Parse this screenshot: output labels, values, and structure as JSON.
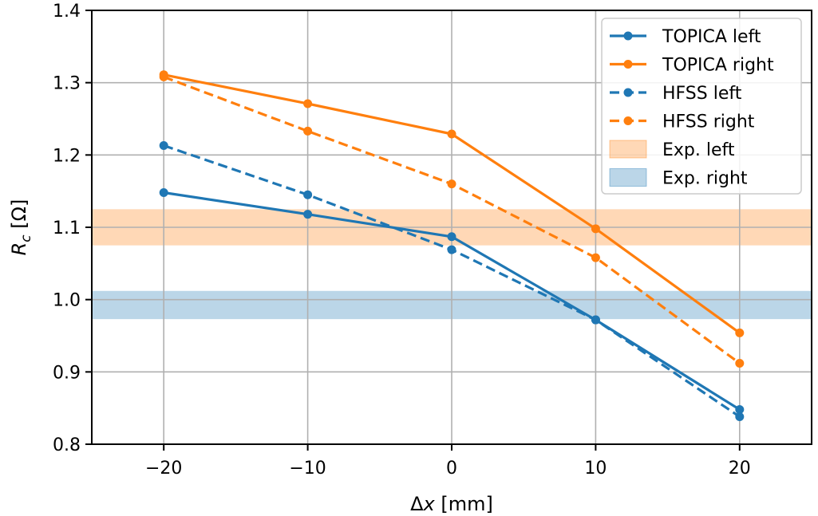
{
  "chart_data": {
    "type": "line",
    "xlabel": "Δx [mm]",
    "ylabel": "R_c [Ω]",
    "xlim": [
      -25,
      25
    ],
    "ylim": [
      0.8,
      1.4
    ],
    "xticks": [
      -20,
      -10,
      0,
      10,
      20
    ],
    "xtick_labels": [
      "−20",
      "−10",
      "0",
      "10",
      "20"
    ],
    "yticks": [
      0.8,
      0.9,
      1.0,
      1.1,
      1.2,
      1.3,
      1.4
    ],
    "ytick_labels": [
      "0.8",
      "0.9",
      "1.0",
      "1.1",
      "1.2",
      "1.3",
      "1.4"
    ],
    "grid": true,
    "legend_position": "top-right",
    "x": [
      -20,
      -10,
      0,
      10,
      20
    ],
    "series": [
      {
        "name": "TOPICA left",
        "style": "solid",
        "color": "#1f77b4",
        "values": [
          1.148,
          1.118,
          1.087,
          0.972,
          0.848
        ]
      },
      {
        "name": "TOPICA right",
        "style": "solid",
        "color": "#ff7f0e",
        "values": [
          1.311,
          1.271,
          1.229,
          1.098,
          0.954
        ]
      },
      {
        "name": "HFSS left",
        "style": "dashed",
        "color": "#1f77b4",
        "values": [
          1.213,
          1.145,
          1.069,
          0.972,
          0.838
        ]
      },
      {
        "name": "HFSS right",
        "style": "dashed",
        "color": "#ff7f0e",
        "values": [
          1.308,
          1.233,
          1.16,
          1.058,
          0.912
        ]
      }
    ],
    "bands": [
      {
        "name": "Exp. left",
        "color": "#ff7f0e",
        "opacity": 0.3,
        "range": [
          1.075,
          1.125
        ]
      },
      {
        "name": "Exp. right",
        "color": "#1f77b4",
        "opacity": 0.3,
        "range": [
          0.973,
          1.012
        ]
      }
    ]
  }
}
